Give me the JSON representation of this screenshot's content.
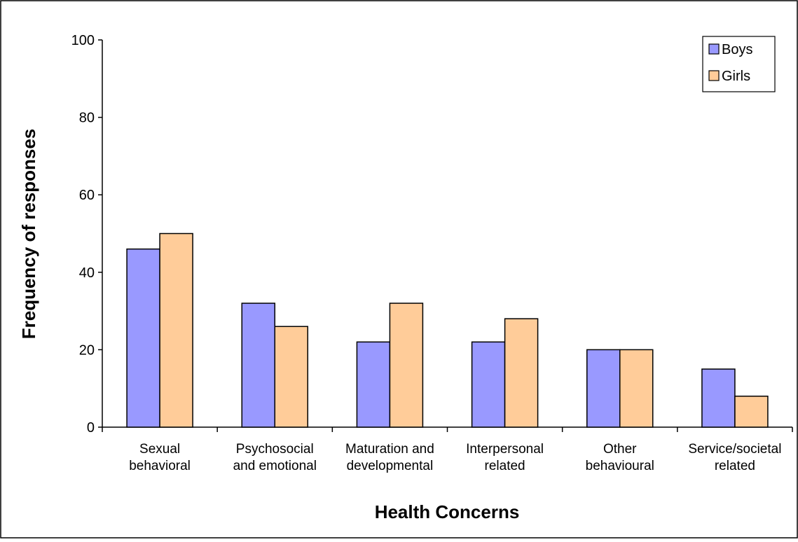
{
  "chart_data": {
    "type": "bar",
    "title": "",
    "xlabel": "Health Concerns",
    "ylabel": "Frequency of responses",
    "ylim": [
      0,
      100
    ],
    "yticks": [
      0,
      20,
      40,
      60,
      80,
      100
    ],
    "grid": false,
    "legend_position": "top-right",
    "categories": [
      [
        "Sexual",
        "behavioral"
      ],
      [
        "Psychosocial",
        "and emotional"
      ],
      [
        "Maturation and",
        "developmental"
      ],
      [
        "Interpersonal",
        "related"
      ],
      [
        "Other",
        "behavioural"
      ],
      [
        "Service/societal",
        "related"
      ]
    ],
    "series": [
      {
        "name": "Boys",
        "color": "#9999ff",
        "values": [
          46,
          32,
          22,
          22,
          20,
          15
        ]
      },
      {
        "name": "Girls",
        "color": "#ffcc99",
        "values": [
          50,
          26,
          32,
          28,
          20,
          8
        ]
      }
    ]
  }
}
